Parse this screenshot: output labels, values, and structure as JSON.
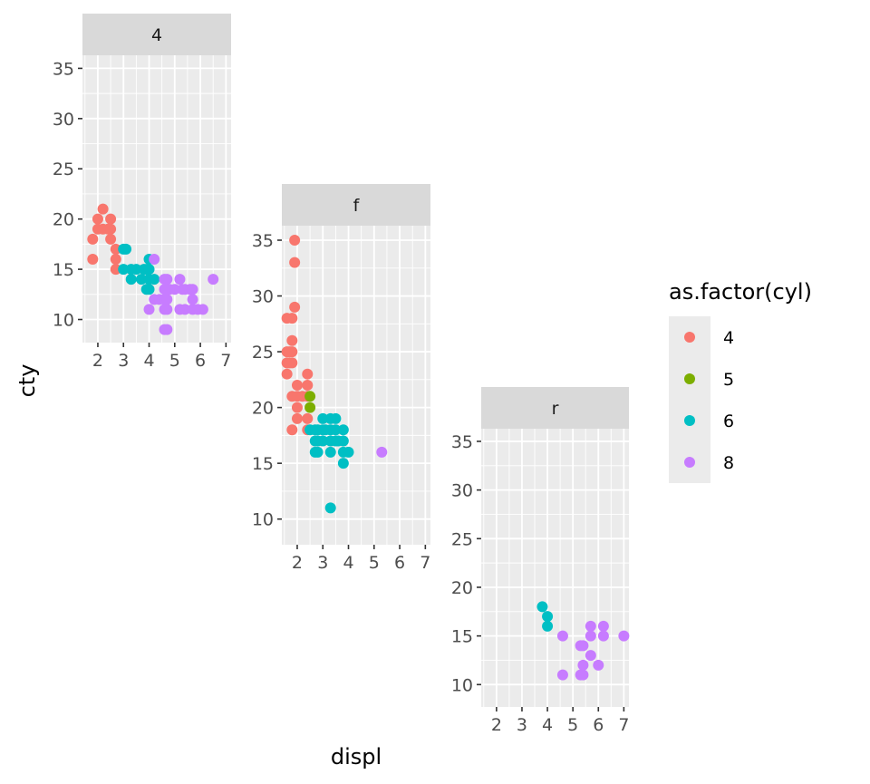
{
  "chart_data": {
    "type": "scatter",
    "x_field": "displ",
    "y_field": "cty",
    "xlabel": "displ",
    "ylabel": "cty",
    "xlim": [
      1.4,
      7.2
    ],
    "ylim": [
      7.7,
      36.3
    ],
    "x_ticks": [
      2,
      3,
      4,
      5,
      6,
      7
    ],
    "y_ticks": [
      10,
      15,
      20,
      25,
      30,
      35
    ],
    "grid": true,
    "legend": {
      "title": "as.factor(cyl)",
      "position": "right",
      "entries": [
        {
          "label": "4",
          "color": "#F8766D"
        },
        {
          "label": "5",
          "color": "#7CAE00"
        },
        {
          "label": "6",
          "color": "#00BFC4"
        },
        {
          "label": "8",
          "color": "#C77CFF"
        }
      ]
    },
    "facets": [
      {
        "label": "4",
        "points": [
          [
            1.8,
            18,
            "4"
          ],
          [
            1.8,
            16,
            "4"
          ],
          [
            2.0,
            20,
            "4"
          ],
          [
            2.0,
            19,
            "4"
          ],
          [
            2.2,
            21,
            "4"
          ],
          [
            2.2,
            19,
            "4"
          ],
          [
            2.4,
            19,
            "4"
          ],
          [
            2.5,
            20,
            "4"
          ],
          [
            2.5,
            19,
            "4"
          ],
          [
            2.5,
            18,
            "4"
          ],
          [
            2.7,
            17,
            "4"
          ],
          [
            2.7,
            16,
            "4"
          ],
          [
            2.7,
            15,
            "4"
          ],
          [
            3.0,
            17,
            "6"
          ],
          [
            3.0,
            15,
            "6"
          ],
          [
            3.1,
            17,
            "6"
          ],
          [
            3.3,
            15,
            "6"
          ],
          [
            3.3,
            14,
            "6"
          ],
          [
            3.5,
            15,
            "6"
          ],
          [
            3.7,
            14,
            "6"
          ],
          [
            3.8,
            15,
            "6"
          ],
          [
            3.9,
            15,
            "6"
          ],
          [
            3.9,
            13,
            "6"
          ],
          [
            4.0,
            16,
            "6"
          ],
          [
            4.0,
            15,
            "6"
          ],
          [
            4.0,
            14,
            "6"
          ],
          [
            4.0,
            13,
            "6"
          ],
          [
            4.2,
            14,
            "6"
          ],
          [
            4.2,
            16,
            "8"
          ],
          [
            4.2,
            12,
            "8"
          ],
          [
            4.0,
            11,
            "8"
          ],
          [
            4.4,
            12,
            "8"
          ],
          [
            4.6,
            14,
            "8"
          ],
          [
            4.6,
            13,
            "8"
          ],
          [
            4.6,
            12,
            "8"
          ],
          [
            4.6,
            11,
            "8"
          ],
          [
            4.6,
            9,
            "8"
          ],
          [
            4.7,
            14,
            "8"
          ],
          [
            4.7,
            13,
            "8"
          ],
          [
            4.7,
            12,
            "8"
          ],
          [
            4.7,
            11,
            "8"
          ],
          [
            4.7,
            9,
            "8"
          ],
          [
            4.8,
            13,
            "8"
          ],
          [
            5.0,
            13,
            "8"
          ],
          [
            5.2,
            14,
            "8"
          ],
          [
            5.2,
            11,
            "8"
          ],
          [
            5.3,
            13,
            "8"
          ],
          [
            5.4,
            11,
            "8"
          ],
          [
            5.4,
            13,
            "8"
          ],
          [
            5.6,
            13,
            "8"
          ],
          [
            5.7,
            13,
            "8"
          ],
          [
            5.7,
            12,
            "8"
          ],
          [
            5.7,
            11,
            "8"
          ],
          [
            5.9,
            11,
            "8"
          ],
          [
            6.1,
            11,
            "8"
          ],
          [
            6.5,
            14,
            "8"
          ]
        ]
      },
      {
        "label": "f",
        "points": [
          [
            1.6,
            28,
            "4"
          ],
          [
            1.6,
            25,
            "4"
          ],
          [
            1.6,
            24,
            "4"
          ],
          [
            1.6,
            23,
            "4"
          ],
          [
            1.7,
            25,
            "4"
          ],
          [
            1.7,
            24,
            "4"
          ],
          [
            1.8,
            28,
            "4"
          ],
          [
            1.8,
            26,
            "4"
          ],
          [
            1.8,
            25,
            "4"
          ],
          [
            1.8,
            24,
            "4"
          ],
          [
            1.8,
            21,
            "4"
          ],
          [
            1.8,
            18,
            "4"
          ],
          [
            1.9,
            35,
            "4"
          ],
          [
            1.9,
            33,
            "4"
          ],
          [
            1.9,
            29,
            "4"
          ],
          [
            2.0,
            22,
            "4"
          ],
          [
            2.0,
            21,
            "4"
          ],
          [
            2.0,
            20,
            "4"
          ],
          [
            2.0,
            19,
            "4"
          ],
          [
            2.2,
            21,
            "4"
          ],
          [
            2.4,
            23,
            "4"
          ],
          [
            2.4,
            22,
            "4"
          ],
          [
            2.4,
            21,
            "4"
          ],
          [
            2.4,
            19,
            "4"
          ],
          [
            2.4,
            18,
            "4"
          ],
          [
            2.5,
            21,
            "5"
          ],
          [
            2.5,
            20,
            "5"
          ],
          [
            2.5,
            18,
            "6"
          ],
          [
            2.7,
            18,
            "6"
          ],
          [
            2.7,
            17,
            "6"
          ],
          [
            2.7,
            16,
            "6"
          ],
          [
            2.8,
            18,
            "6"
          ],
          [
            2.8,
            17,
            "6"
          ],
          [
            2.8,
            16,
            "6"
          ],
          [
            3.0,
            19,
            "6"
          ],
          [
            3.0,
            18,
            "6"
          ],
          [
            3.0,
            17,
            "6"
          ],
          [
            3.1,
            18,
            "6"
          ],
          [
            3.3,
            19,
            "6"
          ],
          [
            3.3,
            18,
            "6"
          ],
          [
            3.3,
            17,
            "6"
          ],
          [
            3.3,
            16,
            "6"
          ],
          [
            3.3,
            11,
            "6"
          ],
          [
            3.5,
            19,
            "6"
          ],
          [
            3.5,
            18,
            "6"
          ],
          [
            3.5,
            17,
            "6"
          ],
          [
            3.6,
            17,
            "6"
          ],
          [
            3.8,
            18,
            "6"
          ],
          [
            3.8,
            17,
            "6"
          ],
          [
            3.8,
            16,
            "6"
          ],
          [
            3.8,
            15,
            "6"
          ],
          [
            4.0,
            16,
            "6"
          ],
          [
            5.3,
            16,
            "8"
          ]
        ]
      },
      {
        "label": "r",
        "points": [
          [
            3.8,
            18,
            "6"
          ],
          [
            4.0,
            17,
            "6"
          ],
          [
            4.0,
            16,
            "6"
          ],
          [
            4.6,
            15,
            "8"
          ],
          [
            4.6,
            11,
            "8"
          ],
          [
            5.3,
            14,
            "8"
          ],
          [
            5.4,
            14,
            "8"
          ],
          [
            5.4,
            12,
            "8"
          ],
          [
            5.3,
            11,
            "8"
          ],
          [
            5.4,
            11,
            "8"
          ],
          [
            5.7,
            16,
            "8"
          ],
          [
            5.7,
            15,
            "8"
          ],
          [
            5.7,
            13,
            "8"
          ],
          [
            6.0,
            12,
            "8"
          ],
          [
            6.2,
            16,
            "8"
          ],
          [
            6.2,
            15,
            "8"
          ],
          [
            7.0,
            15,
            "8"
          ]
        ]
      }
    ]
  }
}
